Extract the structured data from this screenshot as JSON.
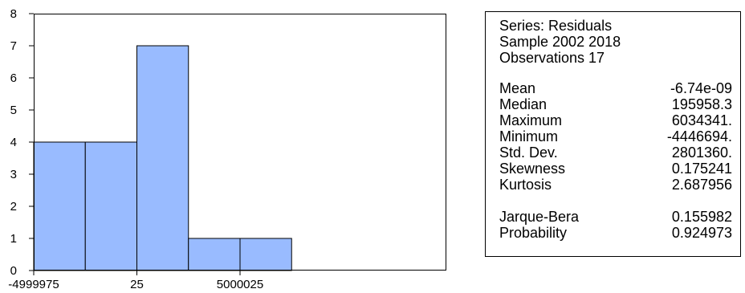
{
  "chart_data": {
    "type": "bar",
    "title": "",
    "xlabel": "",
    "ylabel": "",
    "ylim": [
      0,
      8
    ],
    "yticks": [
      0,
      1,
      2,
      3,
      4,
      5,
      6,
      7,
      8
    ],
    "xlim": [
      -5000000,
      15000000
    ],
    "xticks": [
      {
        "value": -4999975,
        "label": "-4999975"
      },
      {
        "value": 25,
        "label": "25"
      },
      {
        "value": 5000025,
        "label": "5000025"
      }
    ],
    "bins": [
      {
        "from": -5000000,
        "to": -2500000,
        "count": 4
      },
      {
        "from": -2500000,
        "to": 0,
        "count": 4
      },
      {
        "from": 0,
        "to": 2500000,
        "count": 7
      },
      {
        "from": 2500000,
        "to": 5000000,
        "count": 1
      },
      {
        "from": 5000000,
        "to": 7500000,
        "count": 1
      }
    ],
    "bar_color": "#99bbff",
    "grid": false
  },
  "stats": {
    "header": [
      "Series: Residuals",
      "Sample 2002 2018",
      "Observations 17"
    ],
    "rows": [
      {
        "label": "Mean",
        "value": "-6.74e-09"
      },
      {
        "label": "Median",
        "value": "195958.3"
      },
      {
        "label": "Maximum",
        "value": "6034341."
      },
      {
        "label": "Minimum",
        "value": "-4446694."
      },
      {
        "label": "Std. Dev.",
        "value": "2801360."
      },
      {
        "label": "Skewness",
        "value": "0.175241"
      },
      {
        "label": "Kurtosis",
        "value": "2.687956"
      },
      {
        "label": "Jarque-Bera",
        "value": "0.155982"
      },
      {
        "label": "Probability",
        "value": "0.924973"
      }
    ]
  }
}
